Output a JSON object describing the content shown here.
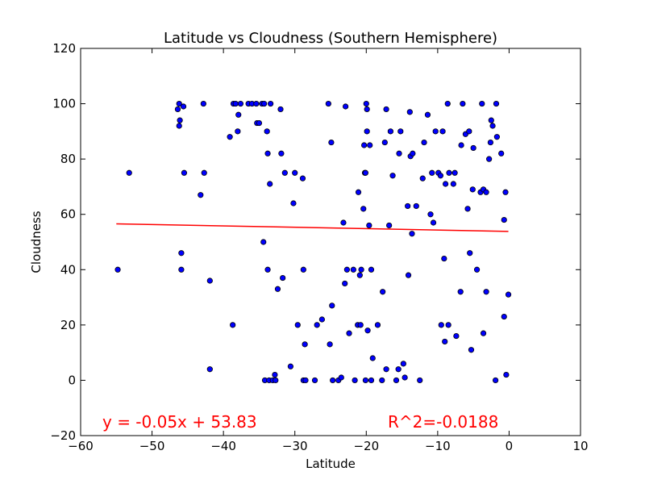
{
  "chart_data": {
    "type": "scatter",
    "title": "Latitude vs Cloudness (Southern Hemisphere)",
    "xlabel": "Latitude",
    "ylabel": "Cloudness",
    "xlim": [
      -60,
      10
    ],
    "ylim": [
      -20,
      120
    ],
    "xticks": [
      -60,
      -50,
      -40,
      -30,
      -20,
      -10,
      0,
      10
    ],
    "yticks": [
      -20,
      0,
      20,
      40,
      60,
      80,
      100,
      120
    ],
    "xtick_labels": [
      "−60",
      "−50",
      "−40",
      "−30",
      "−20",
      "−10",
      "0",
      "10"
    ],
    "ytick_labels": [
      "−20",
      "0",
      "20",
      "40",
      "60",
      "80",
      "100",
      "120"
    ],
    "grid": false,
    "series": [
      {
        "color": "#0000ff",
        "points": [
          [
            -54.8,
            40
          ],
          [
            -53.2,
            75
          ],
          [
            -46.4,
            98
          ],
          [
            -46.2,
            100
          ],
          [
            -46.1,
            94
          ],
          [
            -46.2,
            92
          ],
          [
            -45.9,
            46
          ],
          [
            -45.9,
            40
          ],
          [
            -45.6,
            99
          ],
          [
            -45.5,
            75
          ],
          [
            -43.2,
            67
          ],
          [
            -42.8,
            100
          ],
          [
            -42.7,
            75
          ],
          [
            -41.9,
            36
          ],
          [
            -41.9,
            4
          ],
          [
            -39.1,
            88
          ],
          [
            -38.7,
            20
          ],
          [
            -38.6,
            100
          ],
          [
            -38.3,
            100
          ],
          [
            -38.0,
            90
          ],
          [
            -37.9,
            96
          ],
          [
            -37.6,
            100
          ],
          [
            -36.5,
            100
          ],
          [
            -36.0,
            100
          ],
          [
            -35.4,
            100
          ],
          [
            -35.3,
            93
          ],
          [
            -35.0,
            93
          ],
          [
            -34.6,
            100
          ],
          [
            -34.4,
            50
          ],
          [
            -34.3,
            100
          ],
          [
            -34.2,
            0
          ],
          [
            -33.9,
            90
          ],
          [
            -33.8,
            82
          ],
          [
            -33.8,
            40
          ],
          [
            -33.6,
            0
          ],
          [
            -33.5,
            71
          ],
          [
            -33.4,
            100
          ],
          [
            -33.1,
            0
          ],
          [
            -32.8,
            2
          ],
          [
            -32.7,
            0
          ],
          [
            -32.4,
            33
          ],
          [
            -32.0,
            98
          ],
          [
            -31.9,
            82
          ],
          [
            -31.7,
            37
          ],
          [
            -31.4,
            75
          ],
          [
            -30.6,
            5
          ],
          [
            -30.2,
            64
          ],
          [
            -30.0,
            75
          ],
          [
            -29.6,
            20
          ],
          [
            -28.9,
            73
          ],
          [
            -28.8,
            0
          ],
          [
            -28.8,
            40
          ],
          [
            -28.6,
            13
          ],
          [
            -28.5,
            0
          ],
          [
            -27.2,
            0
          ],
          [
            -26.9,
            20
          ],
          [
            -26.2,
            22
          ],
          [
            -25.3,
            100
          ],
          [
            -25.1,
            13
          ],
          [
            -24.9,
            86
          ],
          [
            -24.8,
            27
          ],
          [
            -24.7,
            0
          ],
          [
            -23.9,
            0
          ],
          [
            -23.5,
            1
          ],
          [
            -23.2,
            57
          ],
          [
            -23.0,
            35
          ],
          [
            -22.9,
            99
          ],
          [
            -22.7,
            40
          ],
          [
            -22.4,
            17
          ],
          [
            -21.8,
            40
          ],
          [
            -21.6,
            0
          ],
          [
            -21.2,
            20
          ],
          [
            -21.1,
            68
          ],
          [
            -20.9,
            38
          ],
          [
            -20.8,
            20
          ],
          [
            -20.7,
            40
          ],
          [
            -20.4,
            62
          ],
          [
            -20.3,
            85
          ],
          [
            -20.2,
            75
          ],
          [
            -20.1,
            0
          ],
          [
            -20.1,
            75
          ],
          [
            -20.0,
            100
          ],
          [
            -19.9,
            98
          ],
          [
            -19.9,
            90
          ],
          [
            -19.8,
            18
          ],
          [
            -19.6,
            56
          ],
          [
            -19.5,
            85
          ],
          [
            -19.3,
            0
          ],
          [
            -19.1,
            8
          ],
          [
            -19.3,
            40
          ],
          [
            -18.4,
            20
          ],
          [
            -17.8,
            0
          ],
          [
            -17.7,
            32
          ],
          [
            -17.4,
            86
          ],
          [
            -17.2,
            4
          ],
          [
            -17.2,
            98
          ],
          [
            -16.8,
            56
          ],
          [
            -16.6,
            90
          ],
          [
            -16.3,
            74
          ],
          [
            -15.8,
            0
          ],
          [
            -15.5,
            4
          ],
          [
            -15.4,
            82
          ],
          [
            -15.2,
            90
          ],
          [
            -14.8,
            6
          ],
          [
            -14.6,
            1
          ],
          [
            -14.2,
            63
          ],
          [
            -14.1,
            38
          ],
          [
            -13.9,
            97
          ],
          [
            -13.8,
            81
          ],
          [
            -13.6,
            53
          ],
          [
            -13.5,
            82
          ],
          [
            -13.0,
            63
          ],
          [
            -12.5,
            0
          ],
          [
            -12.1,
            73
          ],
          [
            -11.9,
            86
          ],
          [
            -11.4,
            96
          ],
          [
            -11.0,
            60
          ],
          [
            -10.8,
            75
          ],
          [
            -10.6,
            57
          ],
          [
            -10.3,
            90
          ],
          [
            -9.9,
            75
          ],
          [
            -9.6,
            74
          ],
          [
            -9.5,
            20
          ],
          [
            -9.3,
            90
          ],
          [
            -9.1,
            44
          ],
          [
            -8.9,
            71
          ],
          [
            -9.0,
            14
          ],
          [
            -8.6,
            100
          ],
          [
            -8.5,
            20
          ],
          [
            -8.4,
            75
          ],
          [
            -7.8,
            71
          ],
          [
            -7.6,
            75
          ],
          [
            -7.4,
            16
          ],
          [
            -6.8,
            32
          ],
          [
            -6.7,
            85
          ],
          [
            -6.5,
            100
          ],
          [
            -6.1,
            89
          ],
          [
            -5.8,
            62
          ],
          [
            -5.6,
            90
          ],
          [
            -5.5,
            46
          ],
          [
            -5.3,
            11
          ],
          [
            -5.1,
            69
          ],
          [
            -5.0,
            84
          ],
          [
            -4.5,
            40
          ],
          [
            -4.0,
            68
          ],
          [
            -3.8,
            100
          ],
          [
            -3.6,
            17
          ],
          [
            -3.6,
            69
          ],
          [
            -3.2,
            68
          ],
          [
            -3.2,
            32
          ],
          [
            -2.8,
            80
          ],
          [
            -2.6,
            86
          ],
          [
            -2.5,
            94
          ],
          [
            -2.3,
            92
          ],
          [
            -1.9,
            0
          ],
          [
            -1.8,
            100
          ],
          [
            -1.7,
            88
          ],
          [
            -1.1,
            82
          ],
          [
            -0.7,
            58
          ],
          [
            -0.7,
            23
          ],
          [
            -0.5,
            68
          ],
          [
            -0.4,
            2
          ],
          [
            -0.1,
            31
          ]
        ]
      }
    ],
    "regression": {
      "color": "#ff0000",
      "slope": -0.05,
      "intercept": 53.83,
      "x_range": [
        -55.0,
        -0.1
      ]
    },
    "annotations": {
      "equation": "y = -0.05x + 53.83",
      "r_squared": "R^2=-0.0188",
      "color": "#ff0000"
    }
  }
}
